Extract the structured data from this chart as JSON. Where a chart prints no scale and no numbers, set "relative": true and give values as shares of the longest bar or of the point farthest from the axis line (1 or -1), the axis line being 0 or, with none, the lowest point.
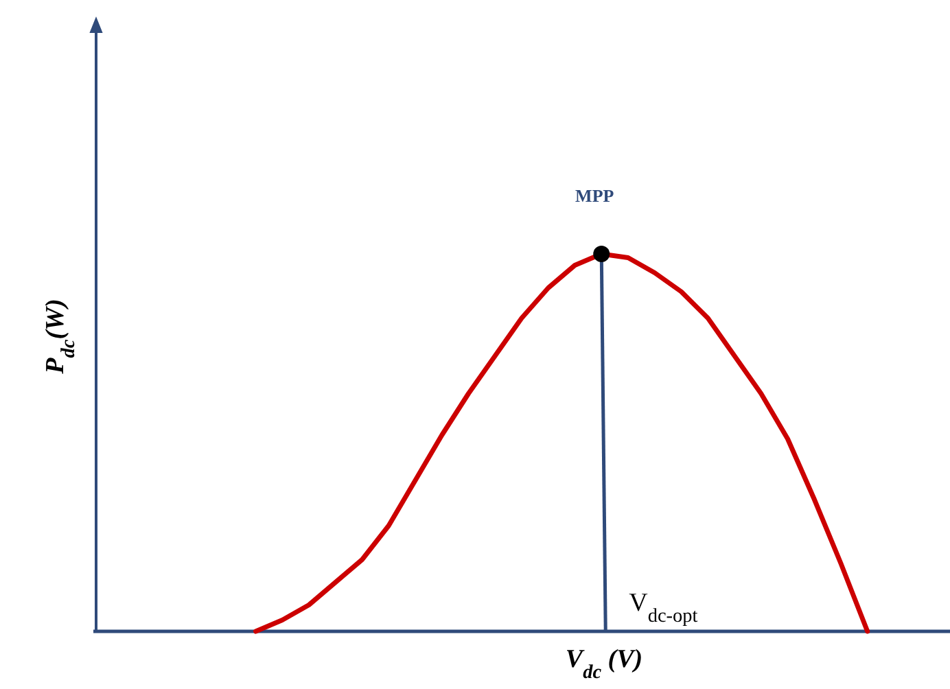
{
  "chart_data": {
    "type": "line",
    "relative": true,
    "xlabel": "V$_{dc}$ (V)",
    "ylabel": "P$_{dc}$(W)",
    "categories": [
      null,
      null,
      null,
      null,
      null,
      null,
      null,
      null,
      null,
      null,
      null,
      null,
      null,
      null,
      null,
      null,
      null,
      null,
      null,
      null,
      null,
      null,
      null,
      null,
      null,
      null,
      null,
      null,
      null,
      null,
      null,
      null,
      null
    ],
    "series": [
      {
        "color": "#cc0000",
        "values": [
          null,
          null,
          null,
          null,
          null,
          null,
          0,
          0.03,
          0.07,
          0.13,
          0.19,
          0.28,
          0.4,
          0.52,
          0.63,
          0.73,
          0.83,
          0.91,
          0.97,
          1,
          0.99,
          0.95,
          0.9,
          0.83,
          0.73,
          0.63,
          0.51,
          0.35,
          0.18,
          0,
          null,
          null,
          null
        ]
      }
    ],
    "annotations": [
      "MPP",
      "V$_{dc-opt}$"
    ]
  }
}
